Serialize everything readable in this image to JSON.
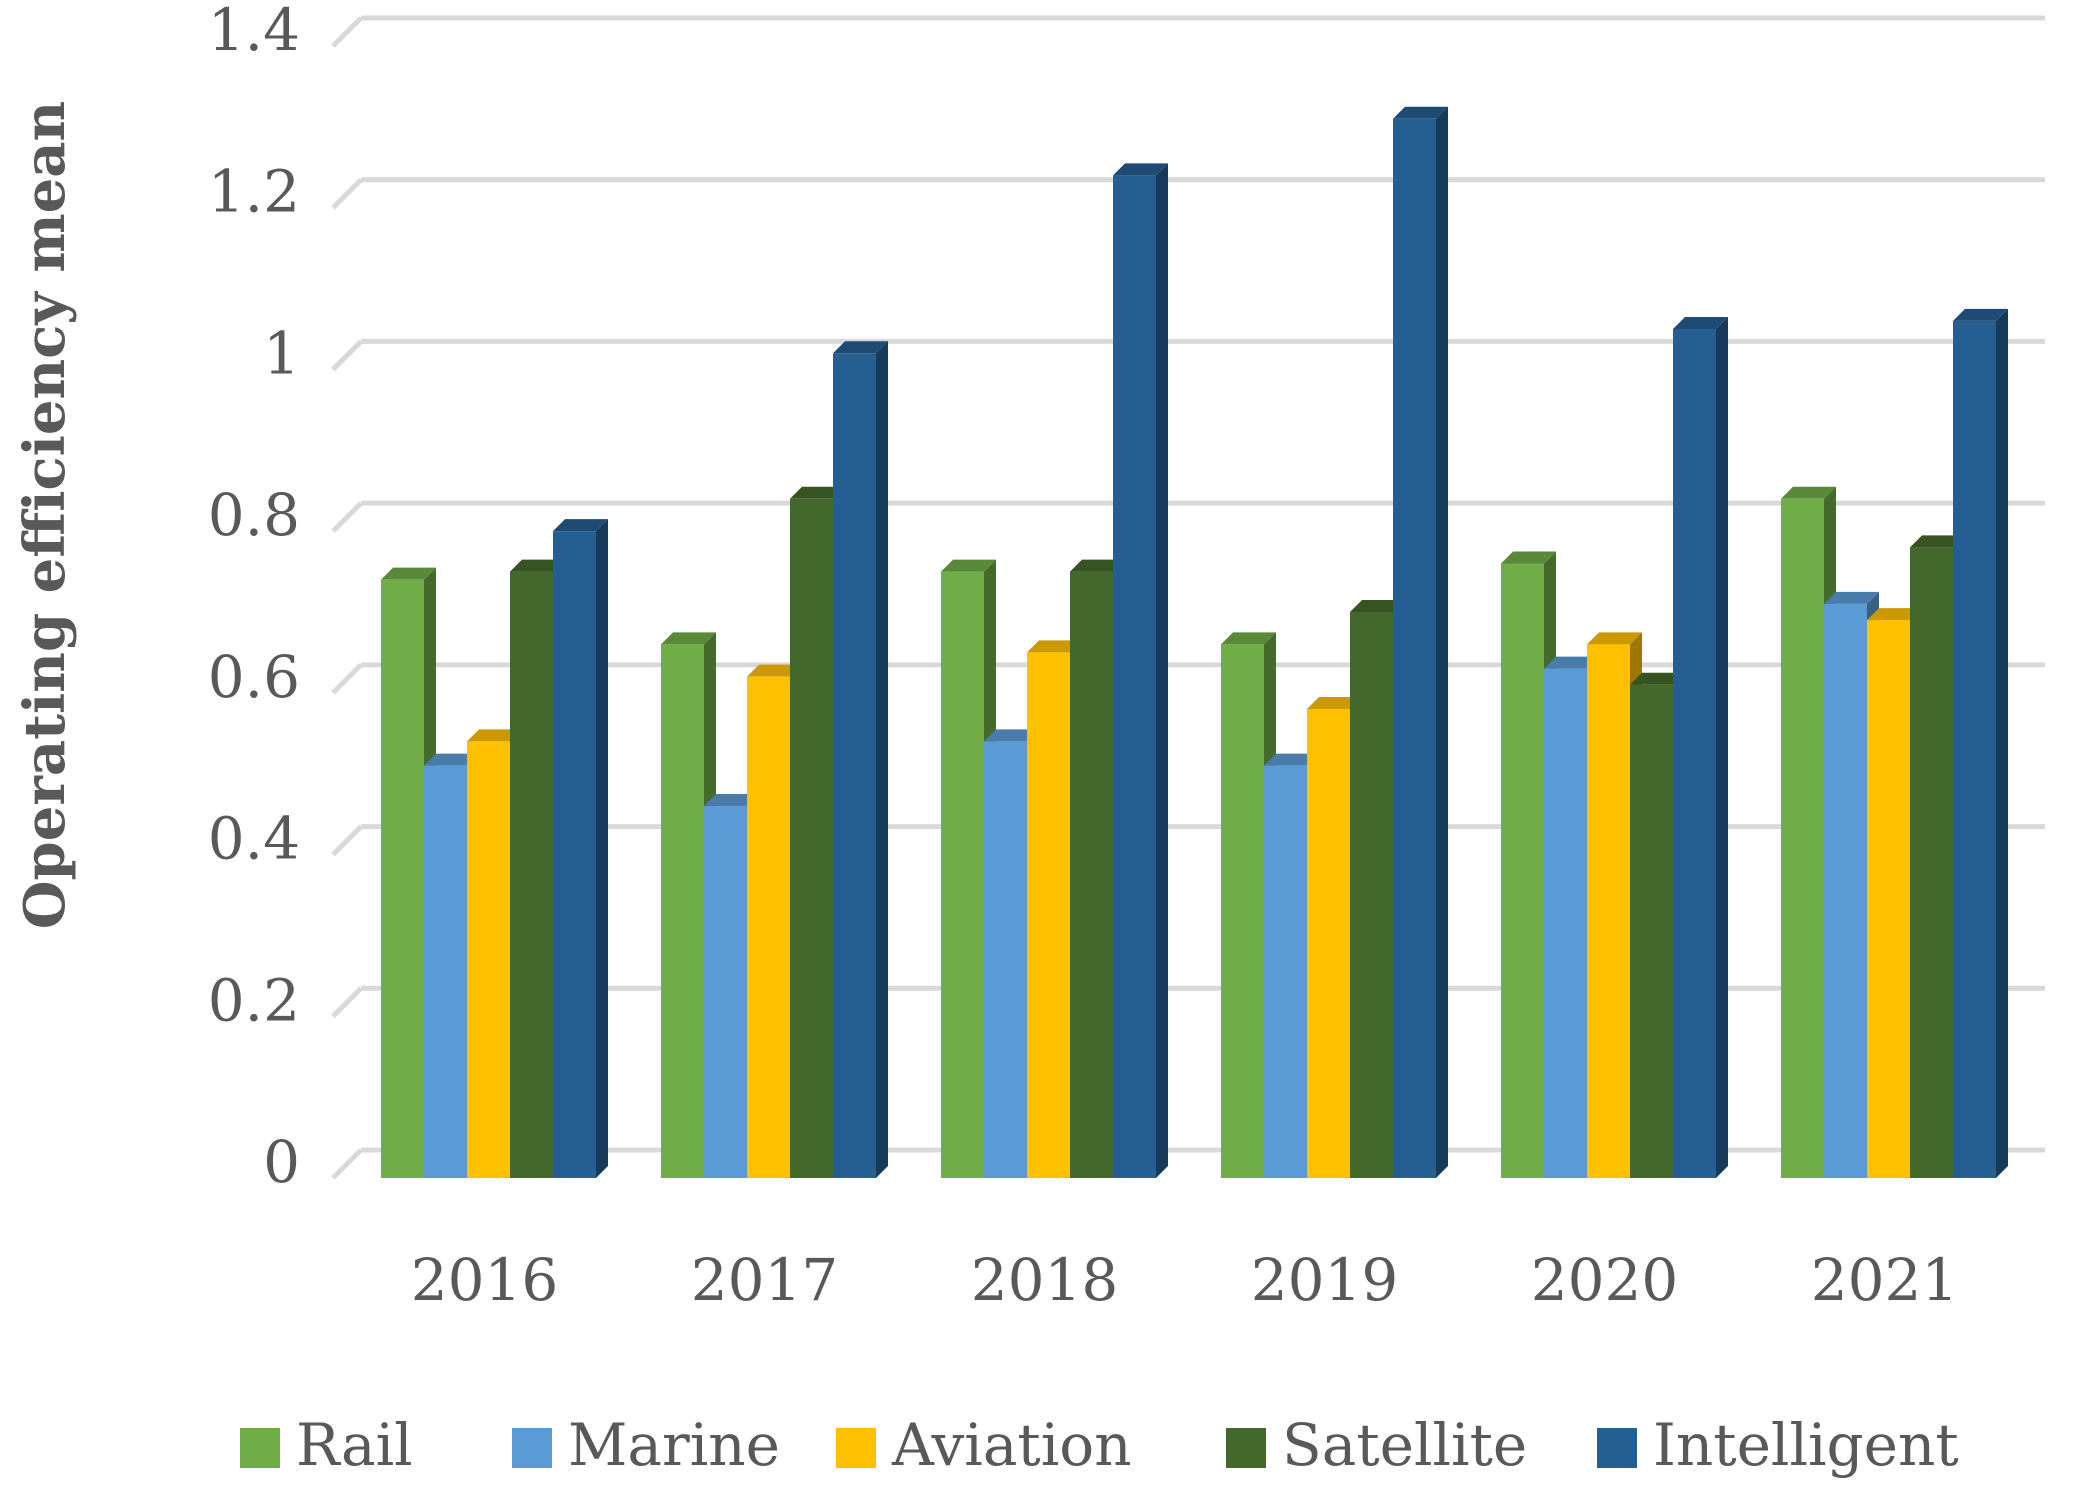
{
  "chart_data": {
    "type": "bar",
    "title": "",
    "xlabel": "",
    "ylabel": "Operating efficiency mean",
    "ylim": [
      0,
      1.4
    ],
    "yticks": [
      "0",
      "0.2",
      "0.4",
      "0.6",
      "0.8",
      "1",
      "1.2",
      "1.4"
    ],
    "categories": [
      "2016",
      "2017",
      "2018",
      "2019",
      "2020",
      "2021"
    ],
    "grid": true,
    "legend_position": "bottom",
    "series": [
      {
        "name": "Rail",
        "color": "#70AD47",
        "values": [
          0.74,
          0.66,
          0.75,
          0.66,
          0.76,
          0.84
        ]
      },
      {
        "name": "Marine",
        "color": "#5B9BD5",
        "values": [
          0.51,
          0.46,
          0.54,
          0.51,
          0.63,
          0.71
        ]
      },
      {
        "name": "Aviation",
        "color": "#FFC000",
        "values": [
          0.54,
          0.62,
          0.65,
          0.58,
          0.66,
          0.69
        ]
      },
      {
        "name": "Satellite",
        "color": "#43682B",
        "values": [
          0.75,
          0.84,
          0.75,
          0.7,
          0.61,
          0.78
        ]
      },
      {
        "name": "Intelligent",
        "color": "#255E91",
        "values": [
          0.8,
          1.02,
          1.24,
          1.31,
          1.05,
          1.06
        ]
      }
    ]
  }
}
